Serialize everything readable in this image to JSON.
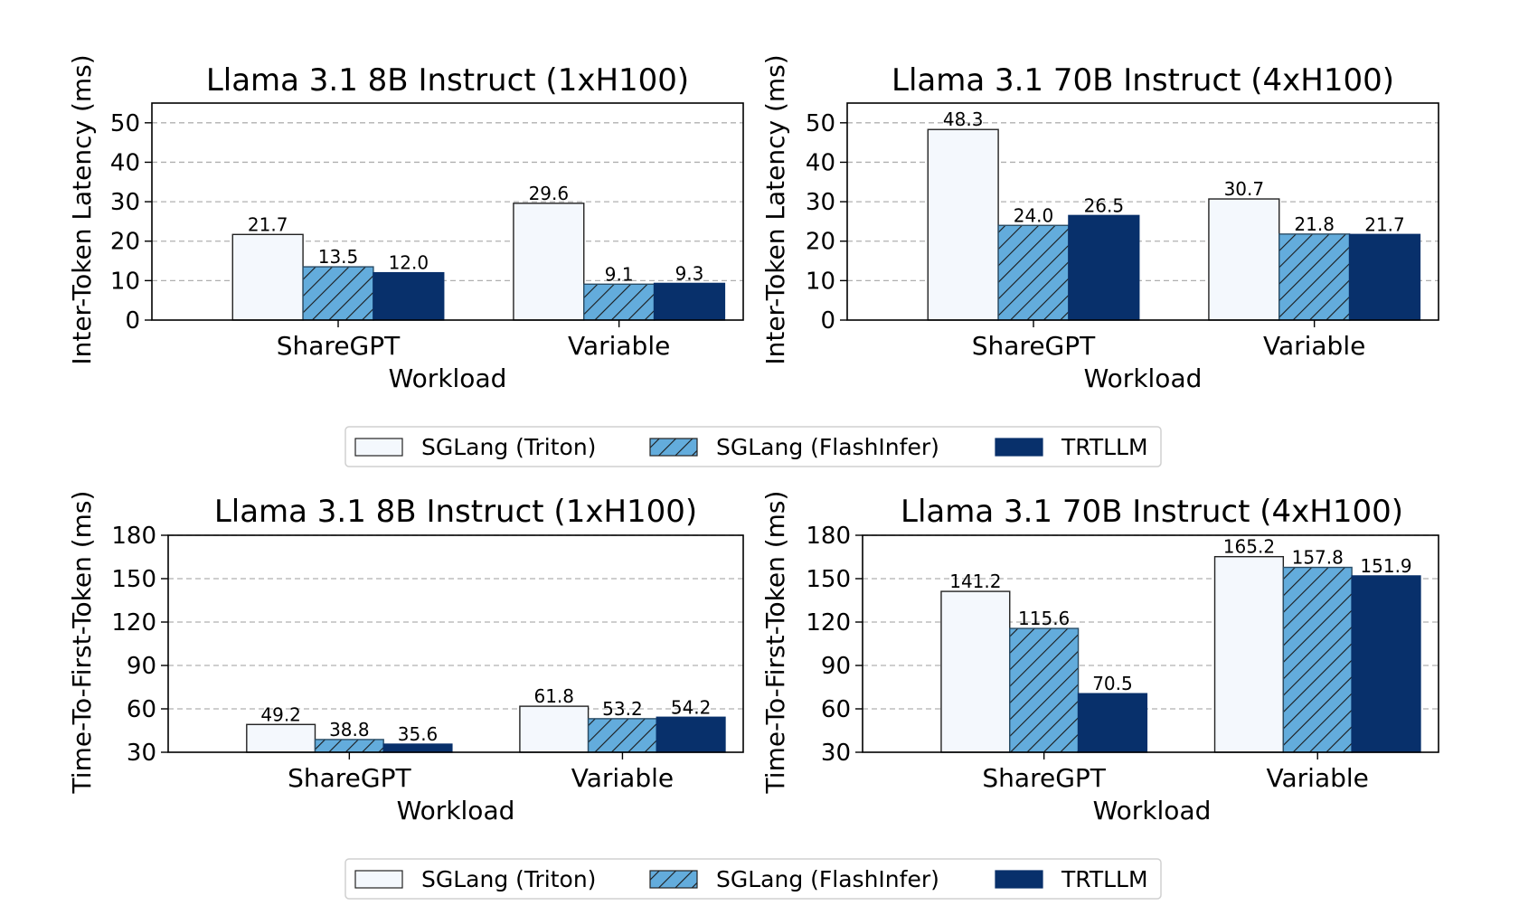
{
  "legend": [
    "SGLang (Triton)",
    "SGLang (FlashInfer)",
    "TRTLLM"
  ],
  "colors": {
    "triton": "#f4f8fd",
    "flashinfer": "#63acdc",
    "trtllm": "#08306b",
    "hatch": "#1a1a1a"
  },
  "chart_data": [
    {
      "type": "bar",
      "title": "Llama 3.1 8B Instruct (1xH100)",
      "xlabel": "Workload",
      "ylabel": "Inter-Token Latency (ms)",
      "categories": [
        "ShareGPT",
        "Variable"
      ],
      "ylim": [
        0,
        55
      ],
      "yticks": [
        0,
        10,
        20,
        30,
        40,
        50
      ],
      "grid": true,
      "series": [
        {
          "name": "SGLang (Triton)",
          "values": [
            21.7,
            29.6
          ],
          "labels": [
            "21.7",
            "29.6"
          ]
        },
        {
          "name": "SGLang (FlashInfer)",
          "values": [
            13.5,
            9.1
          ],
          "labels": [
            "13.5",
            "9.1"
          ]
        },
        {
          "name": "TRTLLM",
          "values": [
            12.0,
            9.3
          ],
          "labels": [
            "12.0",
            "9.3"
          ]
        }
      ]
    },
    {
      "type": "bar",
      "title": "Llama 3.1 70B Instruct (4xH100)",
      "xlabel": "Workload",
      "ylabel": "Inter-Token Latency (ms)",
      "categories": [
        "ShareGPT",
        "Variable"
      ],
      "ylim": [
        0,
        55
      ],
      "yticks": [
        0,
        10,
        20,
        30,
        40,
        50
      ],
      "grid": true,
      "series": [
        {
          "name": "SGLang (Triton)",
          "values": [
            48.3,
            30.7
          ],
          "labels": [
            "48.3",
            "30.7"
          ]
        },
        {
          "name": "SGLang (FlashInfer)",
          "values": [
            24.0,
            21.8
          ],
          "labels": [
            "24.0",
            "21.8"
          ]
        },
        {
          "name": "TRTLLM",
          "values": [
            26.5,
            21.7
          ],
          "labels": [
            "26.5",
            "21.7"
          ]
        }
      ]
    },
    {
      "type": "bar",
      "title": "Llama 3.1 8B Instruct (1xH100)",
      "xlabel": "Workload",
      "ylabel": "Time-To-First-Token (ms)",
      "categories": [
        "ShareGPT",
        "Variable"
      ],
      "ylim": [
        30,
        180
      ],
      "yticks": [
        30,
        60,
        90,
        120,
        150,
        180
      ],
      "grid": true,
      "series": [
        {
          "name": "SGLang (Triton)",
          "values": [
            49.2,
            61.8
          ],
          "labels": [
            "49.2",
            "61.8"
          ]
        },
        {
          "name": "SGLang (FlashInfer)",
          "values": [
            38.8,
            53.2
          ],
          "labels": [
            "38.8",
            "53.2"
          ]
        },
        {
          "name": "TRTLLM",
          "values": [
            35.6,
            54.2
          ],
          "labels": [
            "35.6",
            "54.2"
          ]
        }
      ]
    },
    {
      "type": "bar",
      "title": "Llama 3.1 70B Instruct (4xH100)",
      "xlabel": "Workload",
      "ylabel": "Time-To-First-Token (ms)",
      "categories": [
        "ShareGPT",
        "Variable"
      ],
      "ylim": [
        30,
        180
      ],
      "yticks": [
        30,
        60,
        90,
        120,
        150,
        180
      ],
      "grid": true,
      "series": [
        {
          "name": "SGLang (Triton)",
          "values": [
            141.2,
            165.2
          ],
          "labels": [
            "141.2",
            "165.2"
          ]
        },
        {
          "name": "SGLang (FlashInfer)",
          "values": [
            115.6,
            157.8
          ],
          "labels": [
            "115.6",
            "157.8"
          ]
        },
        {
          "name": "TRTLLM",
          "values": [
            70.5,
            151.9
          ],
          "labels": [
            "70.5",
            "151.9"
          ]
        }
      ]
    }
  ]
}
